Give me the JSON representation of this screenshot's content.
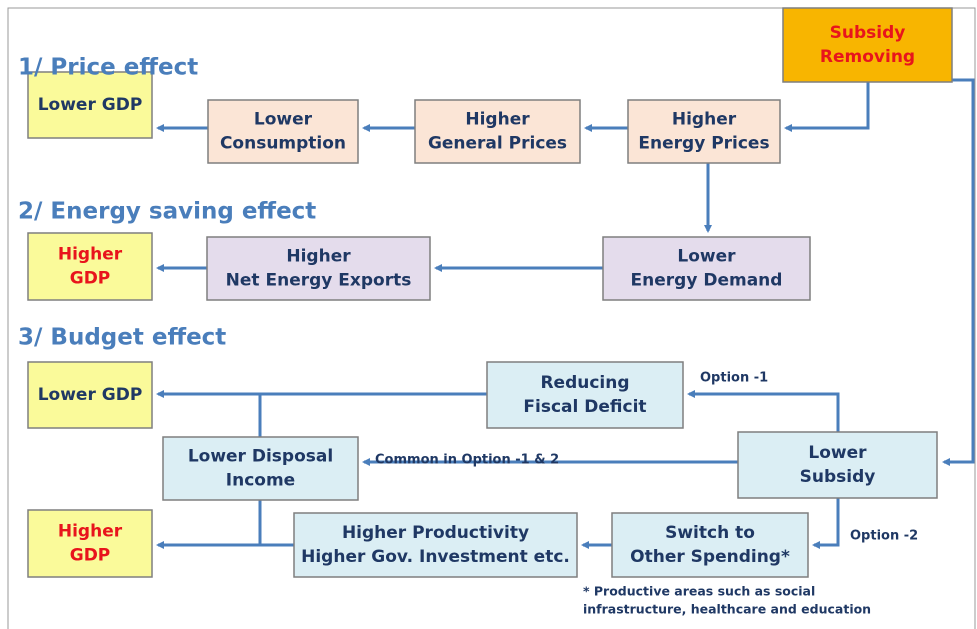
{
  "sections": [
    "1/ Price effect",
    "2/ Energy saving effect",
    "3/ Budget effect"
  ],
  "nodes": [
    {
      "lines": [
        "Subsidy",
        "Removing"
      ]
    },
    {
      "lines": [
        "Lower GDP"
      ]
    },
    {
      "lines": [
        "Lower",
        "Consumption"
      ]
    },
    {
      "lines": [
        "Higher",
        "General Prices"
      ]
    },
    {
      "lines": [
        "Higher",
        "Energy Prices"
      ]
    },
    {
      "lines": [
        "Higher",
        "GDP"
      ]
    },
    {
      "lines": [
        "Higher",
        "Net Energy Exports"
      ]
    },
    {
      "lines": [
        "Lower",
        "Energy Demand"
      ]
    },
    {
      "lines": [
        "Lower GDP"
      ]
    },
    {
      "lines": [
        "Reducing",
        "Fiscal Deficit"
      ]
    },
    {
      "lines": [
        "Lower Disposal",
        "Income"
      ]
    },
    {
      "lines": [
        "Lower",
        "Subsidy"
      ]
    },
    {
      "lines": [
        "Higher",
        "GDP"
      ]
    },
    {
      "lines": [
        "Higher Productivity",
        "Higher Gov.  Investment etc."
      ]
    },
    {
      "lines": [
        "Switch to",
        "Other Spending*"
      ]
    }
  ],
  "edge_labels": [
    "Option -1",
    "Common in Option -1 & 2",
    "Option -2"
  ],
  "footnote": [
    "* Productive areas such as social",
    "infrastructure, healthcare and education"
  ]
}
